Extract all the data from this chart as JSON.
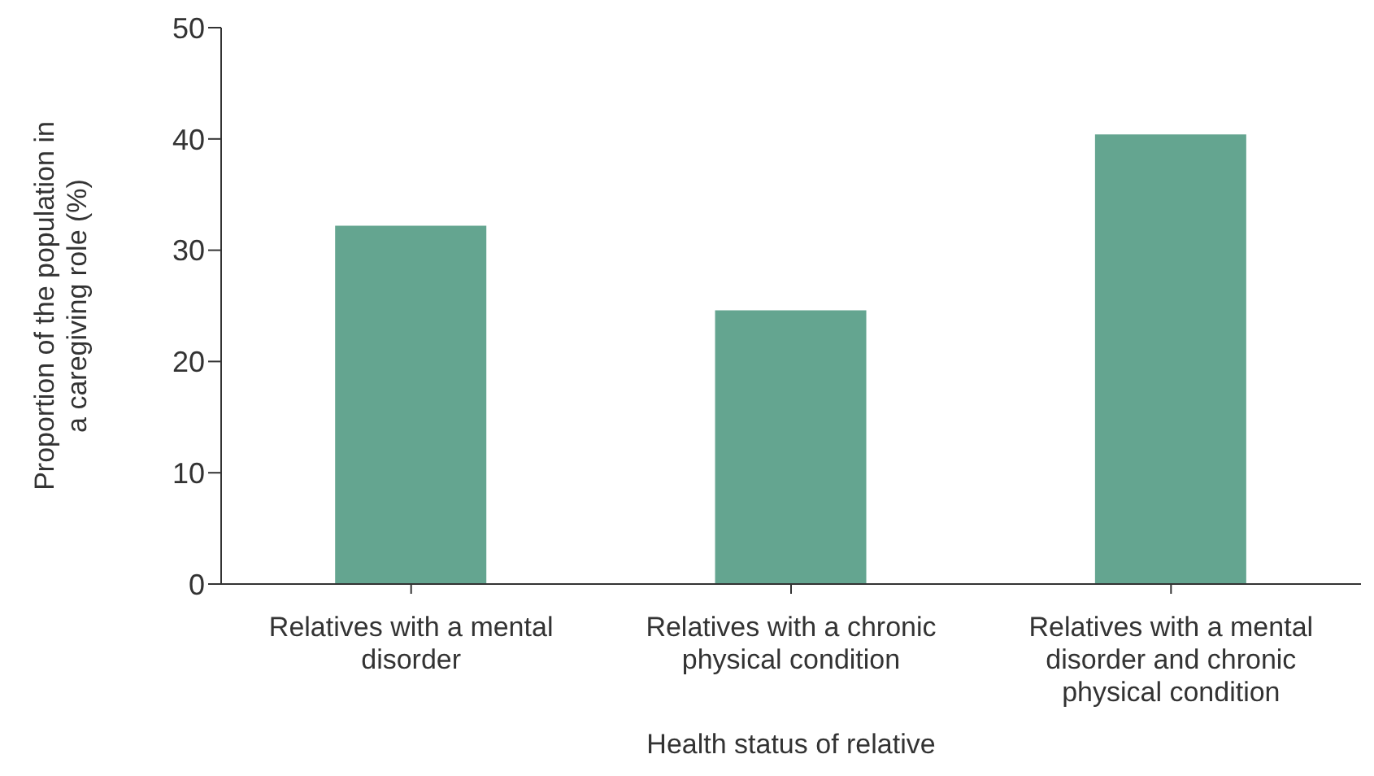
{
  "chart_data": {
    "type": "bar",
    "xlabel": "Health status of relative",
    "ylabel": "Proportion of the population in a caregiving role (%)",
    "categories": [
      "Relatives with a mental disorder",
      "Relatives with a chronic physical condition",
      "Relatives with a mental disorder and chronic physical condition"
    ],
    "values": [
      32.2,
      24.6,
      40.4
    ],
    "color": "#64a590",
    "ylim": [
      0,
      50
    ],
    "yticks": [
      0,
      10,
      20,
      30,
      40,
      50
    ],
    "grid": false
  }
}
